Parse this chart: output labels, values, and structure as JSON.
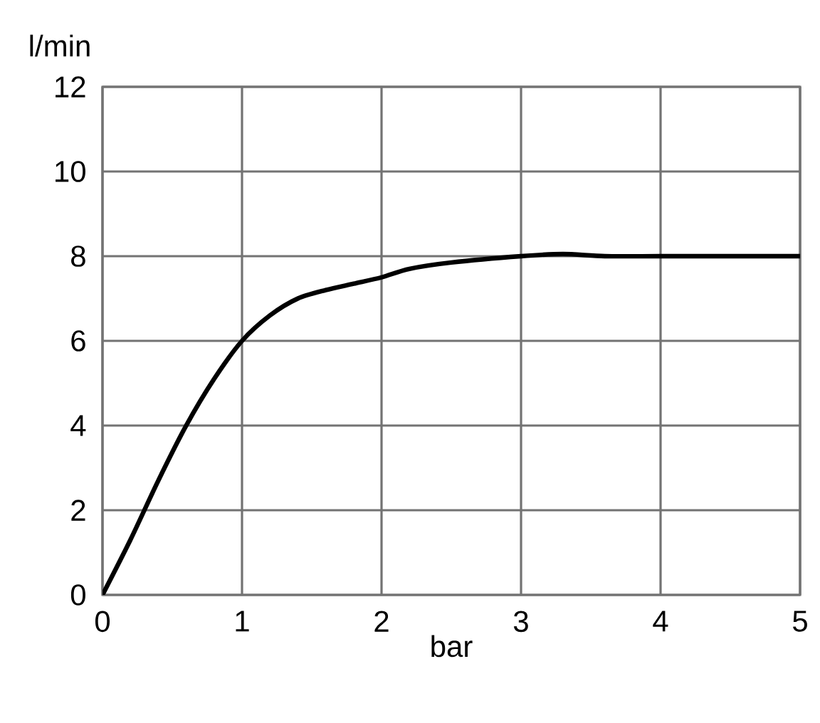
{
  "chart_data": {
    "type": "line",
    "xlabel": "bar",
    "ylabel": "l/min",
    "xlim": [
      0,
      5
    ],
    "ylim": [
      0,
      12
    ],
    "xticks": [
      0,
      1,
      2,
      3,
      4,
      5
    ],
    "yticks": [
      0,
      2,
      4,
      6,
      8,
      10,
      12
    ],
    "grid": true,
    "marker": "none",
    "line_style": "solid",
    "series": [
      {
        "color": "#000000",
        "x": [
          0,
          0.2,
          0.4,
          0.6,
          0.8,
          1.0,
          1.2,
          1.4,
          1.6,
          1.8,
          2.0,
          2.2,
          2.5,
          3.0,
          3.3,
          3.6,
          4.0,
          4.5,
          5.0
        ],
        "values": [
          0,
          1.3,
          2.7,
          4.0,
          5.1,
          6.0,
          6.6,
          7.0,
          7.2,
          7.35,
          7.5,
          7.7,
          7.85,
          8.0,
          8.05,
          8.0,
          8.0,
          8.0,
          8.0
        ]
      }
    ]
  }
}
